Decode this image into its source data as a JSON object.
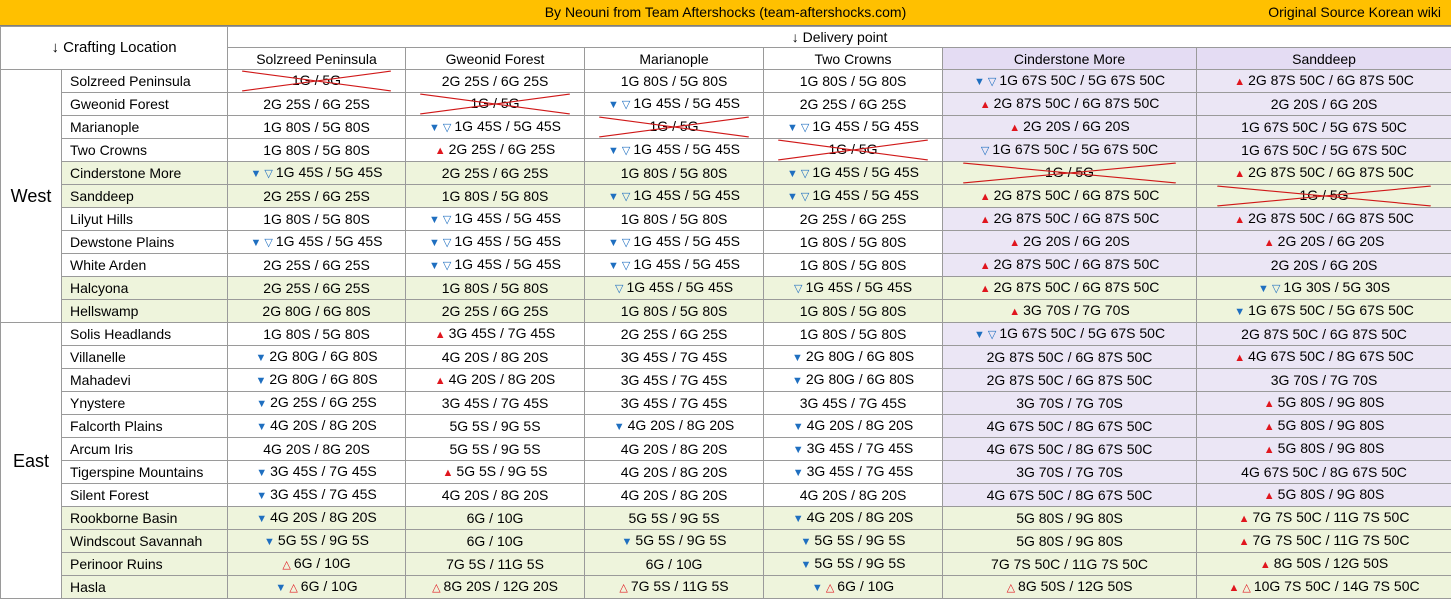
{
  "header": {
    "credit": "By Neouni from Team Aftershocks (team-aftershocks.com)",
    "source": "Original Source Korean wiki"
  },
  "table": {
    "corner_label": "↓ Crafting Location",
    "delivery_label": "↓ Delivery point",
    "columns": [
      "Solzreed Peninsula",
      "Gweonid Forest",
      "Marianople",
      "Two Crowns",
      "Cinderstone More",
      "Sanddeep"
    ],
    "regions": [
      {
        "name": "West",
        "rows": [
          {
            "loc": "Solzreed Peninsula",
            "cells": [
              {
                "t": "1G / 5G",
                "x": true
              },
              {
                "t": "2G 25S / 6G 25S"
              },
              {
                "t": "1G 80S / 5G 80S"
              },
              {
                "t": "1G 80S / 5G 80S"
              },
              {
                "t": "1G 67S 50C / 5G 67S 50C",
                "m": [
                  "down",
                  "odown"
                ]
              },
              {
                "t": "2G 87S 50C / 6G 87S 50C",
                "m": [
                  "up"
                ]
              }
            ]
          },
          {
            "loc": "Gweonid Forest",
            "cells": [
              {
                "t": "2G 25S / 6G 25S"
              },
              {
                "t": "1G / 5G",
                "x": true
              },
              {
                "t": "1G 45S / 5G 45S",
                "m": [
                  "down",
                  "odown"
                ]
              },
              {
                "t": "2G 25S / 6G 25S"
              },
              {
                "t": "2G 87S 50C / 6G 87S 50C",
                "m": [
                  "up"
                ]
              },
              {
                "t": "2G 20S / 6G 20S"
              }
            ]
          },
          {
            "loc": "Marianople",
            "cells": [
              {
                "t": "1G 80S / 5G 80S"
              },
              {
                "t": "1G 45S / 5G 45S",
                "m": [
                  "down",
                  "odown"
                ]
              },
              {
                "t": "1G / 5G",
                "x": true
              },
              {
                "t": "1G 45S / 5G 45S",
                "m": [
                  "down",
                  "odown"
                ]
              },
              {
                "t": "2G 20S / 6G 20S",
                "m": [
                  "up"
                ]
              },
              {
                "t": "1G 67S 50C / 5G 67S 50C"
              }
            ]
          },
          {
            "loc": "Two Crowns",
            "cells": [
              {
                "t": "1G 80S / 5G 80S"
              },
              {
                "t": "2G 25S / 6G 25S",
                "m": [
                  "up"
                ]
              },
              {
                "t": "1G 45S / 5G 45S",
                "m": [
                  "down",
                  "odown"
                ]
              },
              {
                "t": "1G / 5G",
                "x": true
              },
              {
                "t": "1G 67S 50C / 5G 67S 50C",
                "m": [
                  "odown"
                ]
              },
              {
                "t": "1G 67S 50C / 5G 67S 50C"
              }
            ]
          },
          {
            "loc": "Cinderstone More",
            "alt": true,
            "cells": [
              {
                "t": "1G 45S / 5G 45S",
                "m": [
                  "down",
                  "odown"
                ]
              },
              {
                "t": "2G 25S / 6G 25S"
              },
              {
                "t": "1G 80S / 5G 80S"
              },
              {
                "t": "1G 45S / 5G 45S",
                "m": [
                  "down",
                  "odown"
                ]
              },
              {
                "t": "1G / 5G",
                "x": true
              },
              {
                "t": "2G 87S 50C / 6G 87S 50C",
                "m": [
                  "up"
                ]
              }
            ]
          },
          {
            "loc": "Sanddeep",
            "alt": true,
            "cells": [
              {
                "t": "2G 25S / 6G 25S"
              },
              {
                "t": "1G 80S / 5G 80S"
              },
              {
                "t": "1G 45S / 5G 45S",
                "m": [
                  "down",
                  "odown"
                ]
              },
              {
                "t": "1G 45S / 5G 45S",
                "m": [
                  "down",
                  "odown"
                ]
              },
              {
                "t": "2G 87S 50C / 6G 87S 50C",
                "m": [
                  "up"
                ]
              },
              {
                "t": "1G / 5G",
                "x": true
              }
            ]
          },
          {
            "loc": "Lilyut Hills",
            "cells": [
              {
                "t": "1G 80S / 5G 80S"
              },
              {
                "t": "1G 45S / 5G 45S",
                "m": [
                  "down",
                  "odown"
                ]
              },
              {
                "t": "1G 80S / 5G 80S"
              },
              {
                "t": "2G 25S / 6G 25S"
              },
              {
                "t": "2G 87S 50C / 6G 87S 50C",
                "m": [
                  "up"
                ]
              },
              {
                "t": "2G 87S 50C / 6G 87S 50C",
                "m": [
                  "up"
                ]
              }
            ]
          },
          {
            "loc": "Dewstone Plains",
            "cells": [
              {
                "t": "1G 45S / 5G 45S",
                "m": [
                  "down",
                  "odown"
                ]
              },
              {
                "t": "1G 45S / 5G 45S",
                "m": [
                  "down",
                  "odown"
                ]
              },
              {
                "t": "1G 45S / 5G 45S",
                "m": [
                  "down",
                  "odown"
                ]
              },
              {
                "t": "1G 80S / 5G 80S"
              },
              {
                "t": "2G 20S / 6G 20S",
                "m": [
                  "up"
                ]
              },
              {
                "t": "2G 20S / 6G 20S",
                "m": [
                  "up"
                ]
              }
            ]
          },
          {
            "loc": "White Arden",
            "cells": [
              {
                "t": "2G 25S / 6G 25S"
              },
              {
                "t": "1G 45S / 5G 45S",
                "m": [
                  "down",
                  "odown"
                ]
              },
              {
                "t": "1G 45S / 5G 45S",
                "m": [
                  "down",
                  "odown"
                ]
              },
              {
                "t": "1G 80S / 5G 80S"
              },
              {
                "t": "2G 87S 50C / 6G 87S 50C",
                "m": [
                  "up"
                ]
              },
              {
                "t": "2G 20S / 6G 20S"
              }
            ]
          },
          {
            "loc": "Halcyona",
            "alt": true,
            "cells": [
              {
                "t": "2G 25S / 6G 25S"
              },
              {
                "t": "1G 80S / 5G 80S"
              },
              {
                "t": "1G 45S / 5G 45S",
                "m": [
                  "odown"
                ]
              },
              {
                "t": "1G 45S / 5G 45S",
                "m": [
                  "odown"
                ]
              },
              {
                "t": "2G 87S 50C / 6G 87S 50C",
                "m": [
                  "up"
                ]
              },
              {
                "t": "1G 30S / 5G 30S",
                "m": [
                  "down",
                  "odown"
                ]
              }
            ]
          },
          {
            "loc": "Hellswamp",
            "alt": true,
            "cells": [
              {
                "t": "2G 80G / 6G 80S"
              },
              {
                "t": "2G 25S / 6G 25S"
              },
              {
                "t": "1G 80S / 5G 80S"
              },
              {
                "t": "1G 80S / 5G 80S"
              },
              {
                "t": "3G 70S / 7G 70S",
                "m": [
                  "up"
                ]
              },
              {
                "t": "1G 67S 50C / 5G 67S 50C",
                "m": [
                  "down"
                ]
              }
            ]
          }
        ]
      },
      {
        "name": "East",
        "rows": [
          {
            "loc": "Solis Headlands",
            "cells": [
              {
                "t": "1G 80S / 5G 80S"
              },
              {
                "t": "3G 45S / 7G 45S",
                "m": [
                  "up"
                ]
              },
              {
                "t": "2G 25S / 6G 25S"
              },
              {
                "t": "1G 80S / 5G 80S"
              },
              {
                "t": "1G 67S 50C / 5G 67S 50C",
                "m": [
                  "down",
                  "odown"
                ]
              },
              {
                "t": "2G 87S 50C / 6G 87S 50C"
              }
            ]
          },
          {
            "loc": "Villanelle",
            "cells": [
              {
                "t": "2G 80G / 6G 80S",
                "m": [
                  "down"
                ]
              },
              {
                "t": "4G 20S / 8G 20S"
              },
              {
                "t": "3G 45S / 7G 45S"
              },
              {
                "t": "2G 80G / 6G 80S",
                "m": [
                  "down"
                ]
              },
              {
                "t": "2G 87S 50C / 6G 87S 50C"
              },
              {
                "t": "4G 67S 50C / 8G 67S 50C",
                "m": [
                  "up"
                ]
              }
            ]
          },
          {
            "loc": "Mahadevi",
            "cells": [
              {
                "t": "2G 80G / 6G 80S",
                "m": [
                  "down"
                ]
              },
              {
                "t": "4G 20S / 8G 20S",
                "m": [
                  "up"
                ]
              },
              {
                "t": "3G 45S / 7G 45S"
              },
              {
                "t": "2G 80G / 6G 80S",
                "m": [
                  "down"
                ]
              },
              {
                "t": "2G 87S 50C / 6G 87S 50C"
              },
              {
                "t": "3G 70S / 7G 70S"
              }
            ]
          },
          {
            "loc": "Ynystere",
            "cells": [
              {
                "t": "2G 25S / 6G 25S",
                "m": [
                  "down"
                ]
              },
              {
                "t": "3G 45S / 7G 45S"
              },
              {
                "t": "3G 45S / 7G 45S"
              },
              {
                "t": "3G 45S / 7G 45S"
              },
              {
                "t": "3G 70S / 7G 70S"
              },
              {
                "t": "5G 80S / 9G 80S",
                "m": [
                  "up"
                ]
              }
            ]
          },
          {
            "loc": "Falcorth Plains",
            "cells": [
              {
                "t": "4G 20S / 8G 20S",
                "m": [
                  "down"
                ]
              },
              {
                "t": "5G 5S / 9G 5S"
              },
              {
                "t": "4G 20S / 8G 20S",
                "m": [
                  "down"
                ]
              },
              {
                "t": "4G 20S / 8G 20S",
                "m": [
                  "down"
                ]
              },
              {
                "t": "4G 67S 50C / 8G 67S 50C"
              },
              {
                "t": "5G 80S / 9G 80S",
                "m": [
                  "up"
                ]
              }
            ]
          },
          {
            "loc": "Arcum Iris",
            "cells": [
              {
                "t": "4G 20S / 8G 20S"
              },
              {
                "t": "5G 5S / 9G 5S"
              },
              {
                "t": "4G 20S / 8G 20S"
              },
              {
                "t": "3G 45S / 7G 45S",
                "m": [
                  "down"
                ]
              },
              {
                "t": "4G 67S 50C / 8G 67S 50C"
              },
              {
                "t": "5G 80S / 9G 80S",
                "m": [
                  "up"
                ]
              }
            ]
          },
          {
            "loc": "Tigerspine Mountains",
            "cells": [
              {
                "t": "3G 45S / 7G 45S",
                "m": [
                  "down"
                ]
              },
              {
                "t": "5G 5S / 9G 5S",
                "m": [
                  "up"
                ]
              },
              {
                "t": "4G 20S / 8G 20S"
              },
              {
                "t": "3G 45S / 7G 45S",
                "m": [
                  "down"
                ]
              },
              {
                "t": "3G 70S / 7G 70S"
              },
              {
                "t": "4G 67S 50C / 8G 67S 50C"
              }
            ]
          },
          {
            "loc": "Silent Forest",
            "cells": [
              {
                "t": "3G 45S / 7G 45S",
                "m": [
                  "down"
                ]
              },
              {
                "t": "4G 20S / 8G 20S"
              },
              {
                "t": "4G 20S / 8G 20S"
              },
              {
                "t": "4G 20S / 8G 20S"
              },
              {
                "t": "4G 67S 50C / 8G 67S 50C"
              },
              {
                "t": "5G 80S / 9G 80S",
                "m": [
                  "up"
                ]
              }
            ]
          },
          {
            "loc": "Rookborne Basin",
            "alt": true,
            "cells": [
              {
                "t": "4G 20S / 8G 20S",
                "m": [
                  "down"
                ]
              },
              {
                "t": "6G / 10G"
              },
              {
                "t": "5G 5S / 9G 5S"
              },
              {
                "t": "4G 20S / 8G 20S",
                "m": [
                  "down"
                ]
              },
              {
                "t": "5G 80S / 9G 80S"
              },
              {
                "t": "7G 7S 50C / 11G 7S 50C",
                "m": [
                  "up"
                ]
              }
            ]
          },
          {
            "loc": "Windscout Savannah",
            "alt": true,
            "cells": [
              {
                "t": "5G 5S / 9G 5S",
                "m": [
                  "down"
                ]
              },
              {
                "t": "6G / 10G"
              },
              {
                "t": "5G 5S / 9G 5S",
                "m": [
                  "down"
                ]
              },
              {
                "t": "5G 5S / 9G 5S",
                "m": [
                  "down"
                ]
              },
              {
                "t": "5G 80S / 9G 80S"
              },
              {
                "t": "7G 7S 50C / 11G 7S 50C",
                "m": [
                  "up"
                ]
              }
            ]
          },
          {
            "loc": "Perinoor Ruins",
            "alt": true,
            "cells": [
              {
                "t": "6G / 10G",
                "m": [
                  "oup"
                ]
              },
              {
                "t": "7G 5S / 11G 5S"
              },
              {
                "t": "6G / 10G"
              },
              {
                "t": "5G 5S / 9G 5S",
                "m": [
                  "down"
                ]
              },
              {
                "t": "7G 7S 50C / 11G 7S 50C"
              },
              {
                "t": "8G 50S / 12G 50S",
                "m": [
                  "up"
                ]
              }
            ]
          },
          {
            "loc": "Hasla",
            "alt": true,
            "cells": [
              {
                "t": "6G / 10G",
                "m": [
                  "down",
                  "oup"
                ]
              },
              {
                "t": "8G 20S / 12G 20S",
                "m": [
                  "oup"
                ]
              },
              {
                "t": "7G 5S / 11G 5S",
                "m": [
                  "oup"
                ]
              },
              {
                "t": "6G / 10G",
                "m": [
                  "down",
                  "oup"
                ]
              },
              {
                "t": "8G 50S / 12G 50S",
                "m": [
                  "oup"
                ]
              },
              {
                "t": "10G 7S 50C / 14G 7S 50C",
                "m": [
                  "up",
                  "oup"
                ]
              }
            ]
          }
        ]
      }
    ]
  }
}
